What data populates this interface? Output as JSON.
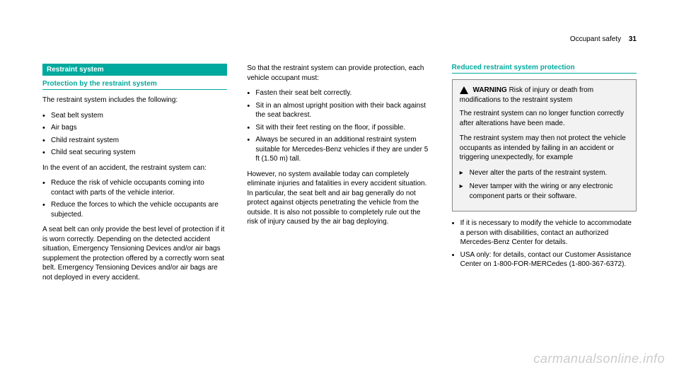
{
  "header": {
    "section": "Occupant safety",
    "page": "31"
  },
  "col1": {
    "banner": "Restraint system",
    "subhead": "Protection by the restraint system",
    "intro": "The restraint system includes the following:",
    "list1": [
      "Seat belt system",
      "Air bags",
      "Child restraint system",
      "Child seat securing system"
    ],
    "para2": "In the event of an accident, the restraint system can:",
    "list2": [
      "Reduce the risk of vehicle occupants coming into contact with parts of the vehicle interior.",
      "Reduce the forces to which the vehicle occupants are subjected."
    ],
    "para3": "A seat belt can only provide the best level of protection if it is worn correctly. Depending on the detected accident situation, Emergency Tensioning Devices and/or air bags supplement the protection offered by a correctly worn seat belt. Emergency Tensioning Devices and/or air bags are not deployed in every accident."
  },
  "col2": {
    "para1": "So that the restraint system can provide protection, each vehicle occupant must:",
    "list1": [
      "Fasten their seat belt correctly.",
      "Sit in an almost upright position with their back against the seat backrest.",
      "Sit with their feet resting on the floor, if possible.",
      "Always be secured in an additional restraint system suitable for Mercedes-Benz vehicles if they are under 5 ft (1.50 m) tall."
    ],
    "para2": "However, no system available today can completely eliminate injuries and fatalities in every accident situation. In particular, the seat belt and air bag generally do not protect against objects penetrating the vehicle from the outside. It is also not possible to completely rule out the risk of injury caused by the air bag deploying."
  },
  "col3": {
    "subhead": "Reduced restraint system protection",
    "warn": {
      "label": "WARNING",
      "title": "Risk of injury or death from modifications to the restraint system",
      "p1": "The restraint system can no longer function correctly after alterations have been made.",
      "p2": "The restraint system may then not protect the vehicle occupants as intended by failing in an accident or triggering unexpectedly, for example",
      "actions": [
        "Never alter the parts of the restraint system.",
        "Never tamper with the wiring or any electronic component parts or their software."
      ]
    },
    "list1": [
      "If it is necessary to modify the vehicle to accommodate a person with disabilities, contact an authorized Mercedes-Benz Center for details.",
      "USA only: for details, contact our Customer Assistance Center on 1-800-FOR-MERCedes (1-800-367-6372)."
    ]
  },
  "watermark": "carmanualsonline.info"
}
